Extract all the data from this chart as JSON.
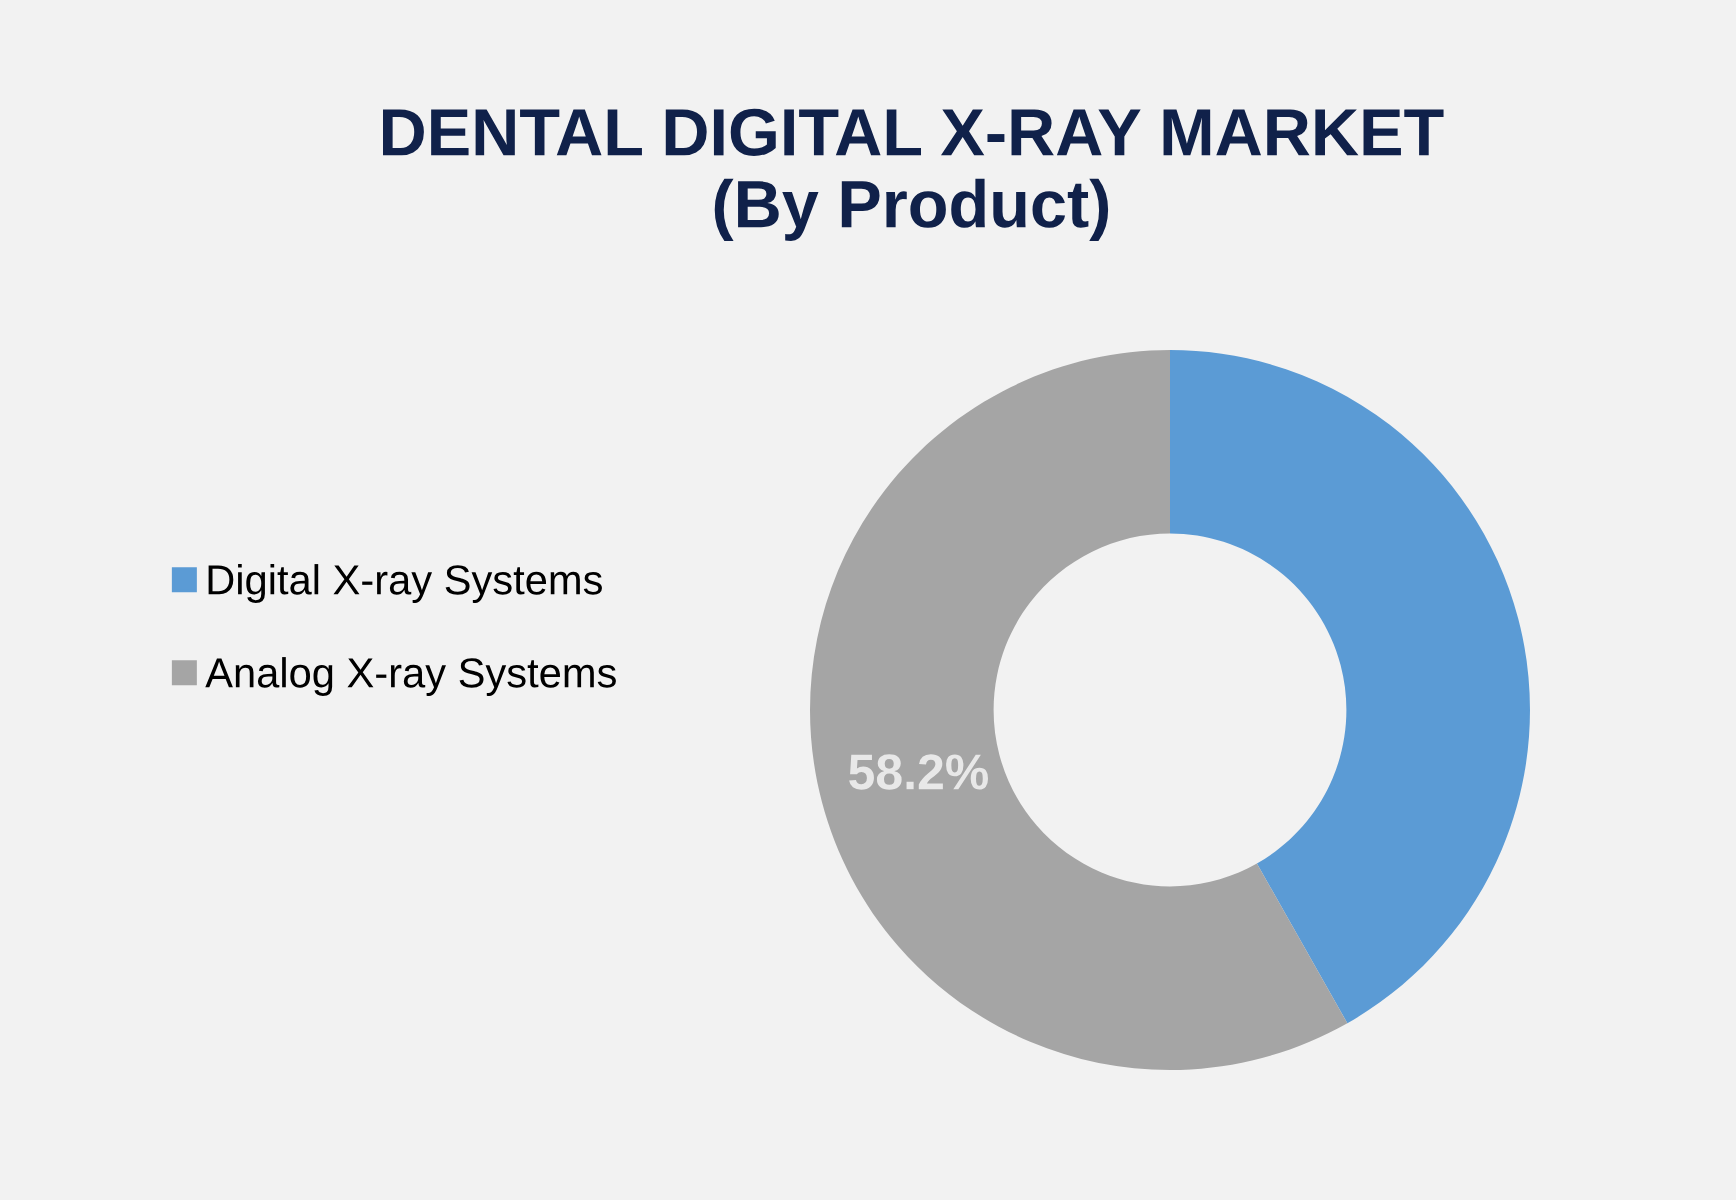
{
  "chart_data": {
    "type": "donut",
    "title": "DENTAL DIGITAL X-RAY MARKET\n(By Product)",
    "categories": [
      "Digital X-ray Systems",
      "Analog X-ray Systems"
    ],
    "values": [
      41.8,
      58.2
    ],
    "colors": [
      "#5b9bd5",
      "#a5a5a5"
    ],
    "value_labels": [
      null,
      "58.2%"
    ],
    "legend": "left"
  }
}
